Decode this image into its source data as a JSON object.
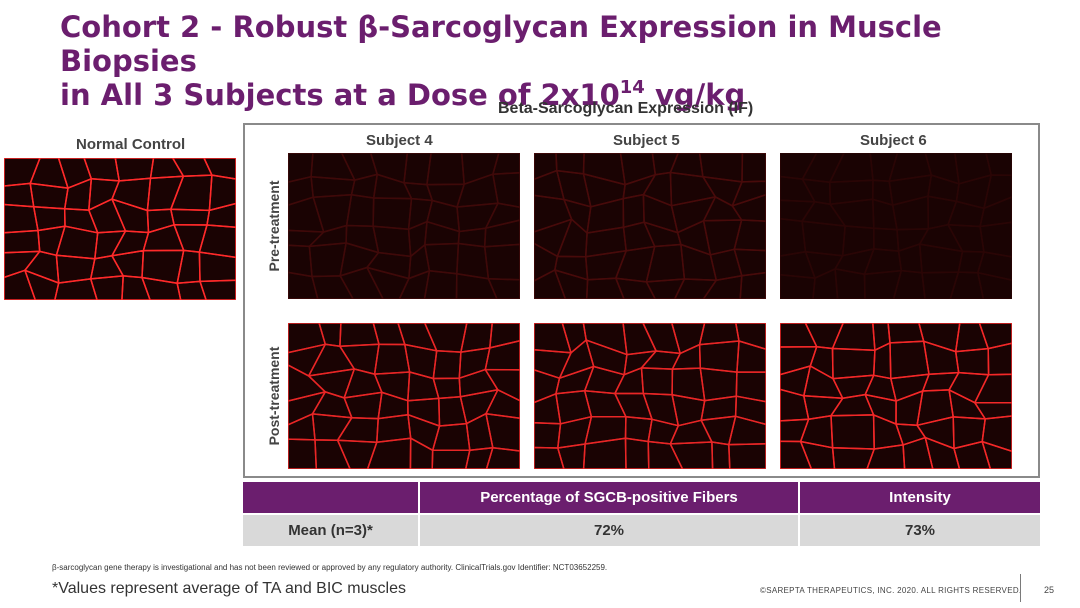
{
  "slide": {
    "title_line1": "Cohort 2 - Robust β-Sarcoglycan Expression in Muscle Biopsies",
    "title_line2_pre": "in All 3 Subjects at a Dose of 2x10",
    "title_line2_sup": "14",
    "title_line2_post": " vg/kg",
    "panel_title": "Beta-Sarcoglycan Expression (IF)",
    "normal_control_label": "Normal Control",
    "subjects": [
      "Subject 4",
      "Subject 5",
      "Subject 6"
    ],
    "rows": [
      "Pre-treatment",
      "Post-treatment"
    ]
  },
  "table": {
    "headers": [
      "",
      "Percentage of SGCB-positive Fibers",
      "Intensity"
    ],
    "row_label": "Mean (n=3)*",
    "values": [
      "72%",
      "73%"
    ]
  },
  "footer": {
    "disclaimer": "β-sarcoglycan gene therapy is investigational and has not been reviewed or approved by any regulatory authority. ClinicalTrials.gov Identifier: NCT03652259.",
    "footnote": "*Values represent average of TA and BIC muscles",
    "copyright": "©SAREPTA THERAPEUTICS, INC. 2020.  ALL RIGHTS RESERVED.",
    "page_number": "25"
  },
  "colors": {
    "brand_purple": "#6b1e6e",
    "table_gray": "#d9d9d9",
    "stain_red": "#ff2a2a"
  },
  "images": {
    "normal_control": "bright red fiber membrane staining",
    "subject4_pre": "faint red staining",
    "subject5_pre": "faint red staining",
    "subject6_pre": "very faint red staining",
    "subject4_post": "bright red fiber membrane staining",
    "subject5_post": "bright red fiber membrane staining",
    "subject6_post": "bright red fiber membrane staining"
  }
}
